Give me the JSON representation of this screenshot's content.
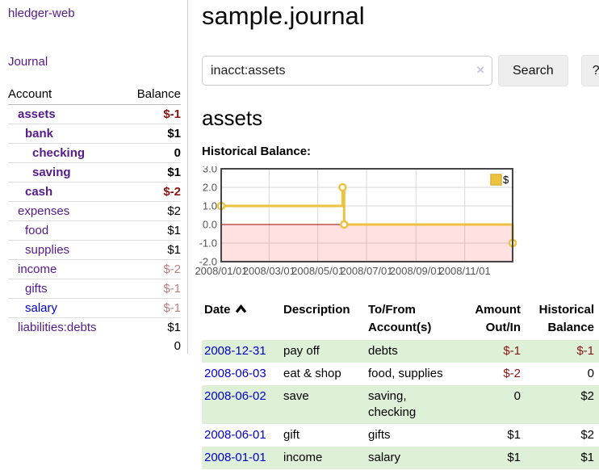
{
  "sidebar": {
    "app_title": "hledger-web",
    "journal_link": "Journal",
    "accounts_table": {
      "account_header": "Account",
      "balance_header": "Balance",
      "rows": [
        {
          "name": "assets",
          "indent": 1,
          "bold": true,
          "balance": "$-1",
          "neg": "strong"
        },
        {
          "name": "bank",
          "indent": 2,
          "bold": true,
          "balance": "$1",
          "neg": "none"
        },
        {
          "name": "checking",
          "indent": 3,
          "bold": true,
          "balance": "0",
          "neg": "none"
        },
        {
          "name": "saving",
          "indent": 3,
          "bold": true,
          "balance": "$1",
          "neg": "none"
        },
        {
          "name": "cash",
          "indent": 2,
          "bold": true,
          "balance": "$-2",
          "neg": "strong"
        },
        {
          "name": "expenses",
          "indent": 1,
          "bold": false,
          "balance": "$2",
          "neg": "none"
        },
        {
          "name": "food",
          "indent": 2,
          "bold": false,
          "balance": "$1",
          "neg": "none"
        },
        {
          "name": "supplies",
          "indent": 2,
          "bold": false,
          "balance": "$1",
          "neg": "none"
        },
        {
          "name": "income",
          "indent": 1,
          "bold": false,
          "balance": "$-2",
          "neg": "soft"
        },
        {
          "name": "gifts",
          "indent": 2,
          "bold": false,
          "balance": "$-1",
          "neg": "soft"
        },
        {
          "name": "salary",
          "indent": 2,
          "bold": false,
          "balance": "$-1",
          "neg": "soft",
          "link_color": "blue"
        },
        {
          "name": "liabilities:debts",
          "indent": 1,
          "bold": false,
          "balance": "$1",
          "neg": "none"
        }
      ],
      "total": "0"
    }
  },
  "header": {
    "title": "sample.journal"
  },
  "search": {
    "query": "inacct:assets",
    "clear_icon": "×",
    "search_label": "Search",
    "help_label": "?"
  },
  "account_page": {
    "heading": "assets",
    "chart_label": "Historical Balance:"
  },
  "chart_data": {
    "type": "line",
    "step": true,
    "grid": true,
    "ylim": [
      -2,
      3
    ],
    "y_tick_values": [
      3,
      2,
      1,
      0,
      -1,
      -2
    ],
    "y_tick_labels": [
      "3.0",
      "2.0",
      "1.0",
      "0.0",
      "-1.0",
      "-2.0"
    ],
    "x_range_days": [
      0,
      365
    ],
    "x_tick_days": [
      0,
      60,
      121,
      182,
      244,
      305
    ],
    "x_tick_labels": [
      "2008/01/01",
      "2008/03/01",
      "2008/05/01",
      "2008/07/01",
      "2008/09/01",
      "2008/11/01"
    ],
    "series": [
      {
        "name": "$",
        "color": "#edc240",
        "points": [
          {
            "date": "2008-01-01",
            "day": 0,
            "value": 1
          },
          {
            "date": "2008-06-01",
            "day": 152,
            "value": 2
          },
          {
            "date": "2008-06-03",
            "day": 154,
            "value": 0
          },
          {
            "date": "2008-12-31",
            "day": 365,
            "value": -1
          }
        ]
      }
    ],
    "legend": {
      "label": "$",
      "position": "top-right"
    },
    "colors": {
      "negative_region_fill": "rgba(255,45,45,0.14)",
      "zero_line": "#a40000",
      "gridline": "#d8d8d8",
      "border": "#454545",
      "tick_text": "#545454",
      "legend_swatch_border": "#d9b23a"
    }
  },
  "register_table": {
    "columns": [
      "Date",
      "Description",
      "To/From Account(s)",
      "Amount Out/In",
      "Historical Balance"
    ],
    "sort_icon": "chevron-up",
    "rows": [
      {
        "date": "2008-12-31",
        "description": "pay off",
        "accounts": "debts",
        "amount": "$-1",
        "amount_neg": true,
        "balance": "$-1",
        "balance_neg": true,
        "shaded": true
      },
      {
        "date": "2008-06-03",
        "description": "eat & shop",
        "accounts": "food, supplies",
        "amount": "$-2",
        "amount_neg": true,
        "balance": "0",
        "balance_neg": false,
        "shaded": false
      },
      {
        "date": "2008-06-02",
        "description": "save",
        "accounts": "saving, checking",
        "amount": "0",
        "amount_neg": false,
        "balance": "$2",
        "balance_neg": false,
        "shaded": true
      },
      {
        "date": "2008-06-01",
        "description": "gift",
        "accounts": "gifts",
        "amount": "$1",
        "amount_neg": false,
        "balance": "$2",
        "balance_neg": false,
        "shaded": false
      },
      {
        "date": "2008-01-01",
        "description": "income",
        "accounts": "salary",
        "amount": "$1",
        "amount_neg": false,
        "balance": "$1",
        "balance_neg": false,
        "shaded": true
      }
    ]
  },
  "colors": {
    "link_purple": "#551a8b",
    "link_blue": "#0000cc",
    "negative_strong": "#8b1313",
    "negative_soft": "#bf7f7f",
    "row_green": "#dff0d8",
    "series_gold": "#edc240"
  }
}
